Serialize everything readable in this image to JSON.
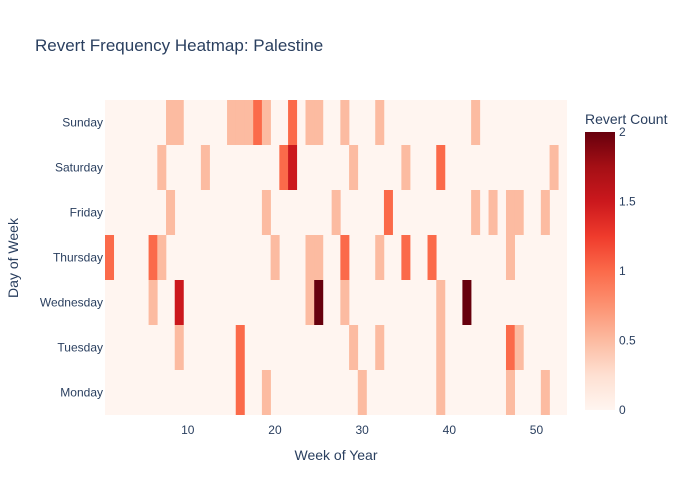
{
  "chart_data": {
    "type": "heatmap",
    "title": "Revert Frequency Heatmap: Palestine",
    "xlabel": "Week of Year",
    "ylabel": "Day of Week",
    "x_range": [
      0.5,
      53.5
    ],
    "x_ticks": [
      10,
      20,
      30,
      40,
      50
    ],
    "days": [
      "Monday",
      "Tuesday",
      "Wednesday",
      "Thursday",
      "Friday",
      "Saturday",
      "Sunday"
    ],
    "colorbar": {
      "title": "Revert Count",
      "min": 0,
      "max": 2,
      "ticks": [
        "0",
        "0.5",
        "1",
        "1.5",
        "2"
      ]
    },
    "colorscale": [
      "#fff5f0",
      "#fee0d2",
      "#fcbba1",
      "#fc9272",
      "#fb6a4a",
      "#ef3b2c",
      "#cb181d",
      "#a50f15",
      "#67000d"
    ],
    "cells": {
      "Monday": [
        [
          16,
          1
        ],
        [
          19,
          0.5
        ],
        [
          30,
          0.5
        ],
        [
          39,
          0.5
        ],
        [
          47,
          0.5
        ],
        [
          51,
          0.5
        ]
      ],
      "Tuesday": [
        [
          9,
          0.5
        ],
        [
          16,
          1
        ],
        [
          29,
          0.5
        ],
        [
          32,
          0.5
        ],
        [
          39,
          0.5
        ],
        [
          47,
          1
        ],
        [
          48,
          0.5
        ]
      ],
      "Wednesday": [
        [
          6,
          0.5
        ],
        [
          9,
          1.5
        ],
        [
          24,
          0.5
        ],
        [
          25,
          2
        ],
        [
          28,
          0.5
        ],
        [
          39,
          0.5
        ],
        [
          42,
          2
        ]
      ],
      "Thursday": [
        [
          1,
          1
        ],
        [
          6,
          1
        ],
        [
          7,
          0.5
        ],
        [
          20,
          0.5
        ],
        [
          24,
          0.5
        ],
        [
          25,
          0.5
        ],
        [
          28,
          1
        ],
        [
          32,
          0.5
        ],
        [
          35,
          1
        ],
        [
          38,
          1
        ],
        [
          47,
          0.5
        ]
      ],
      "Friday": [
        [
          8,
          0.5
        ],
        [
          19,
          0.5
        ],
        [
          27,
          0.5
        ],
        [
          33,
          1
        ],
        [
          43,
          0.5
        ],
        [
          45,
          0.5
        ],
        [
          47,
          0.5
        ],
        [
          48,
          0.5
        ],
        [
          51,
          0.5
        ]
      ],
      "Saturday": [
        [
          7,
          0.5
        ],
        [
          12,
          0.5
        ],
        [
          21,
          1
        ],
        [
          22,
          1.5
        ],
        [
          29,
          0.5
        ],
        [
          35,
          0.5
        ],
        [
          39,
          1
        ],
        [
          52,
          0.5
        ]
      ],
      "Sunday": [
        [
          8,
          0.5
        ],
        [
          9,
          0.5
        ],
        [
          15,
          0.5
        ],
        [
          16,
          0.5
        ],
        [
          17,
          0.5
        ],
        [
          18,
          1
        ],
        [
          19,
          0.5
        ],
        [
          22,
          1
        ],
        [
          24,
          0.5
        ],
        [
          25,
          0.5
        ],
        [
          28,
          0.5
        ],
        [
          32,
          0.5
        ],
        [
          43,
          0.5
        ]
      ]
    }
  }
}
